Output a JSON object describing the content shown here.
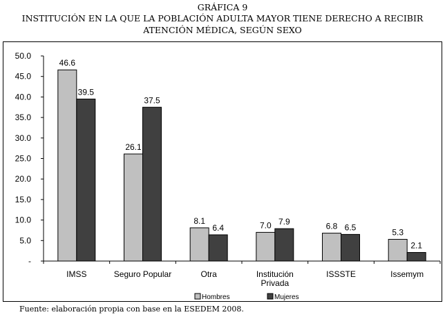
{
  "header": {
    "label": "GRÁFICA 9",
    "title_line1": "INSTITUCIÓN EN LA QUE LA POBLACIÓN ADULTA MAYOR TIENE DERECHO A RECIBIR",
    "title_line2": "ATENCIÓN MÉDICA, SEGÚN SEXO"
  },
  "footer": {
    "source": "Fuente: elaboración propia con base en la ESEDEM 2008."
  },
  "chart_data": {
    "type": "bar",
    "title": "INSTITUCIÓN EN LA QUE LA POBLACIÓN ADULTA MAYOR TIENE DERECHO A RECIBIR ATENCIÓN MÉDICA, SEGÚN SEXO",
    "categories": [
      [
        "IMSS"
      ],
      [
        "Seguro Popular"
      ],
      [
        "Otra"
      ],
      [
        "Institución",
        "Privada"
      ],
      [
        "ISSSTE"
      ],
      [
        "Issemym"
      ]
    ],
    "series": [
      {
        "name": "Hombres",
        "values": [
          46.6,
          26.1,
          8.1,
          7.0,
          6.8,
          5.3
        ],
        "color": "#c0c0c0"
      },
      {
        "name": "Mujeres",
        "values": [
          39.5,
          37.5,
          6.4,
          7.9,
          6.5,
          2.1
        ],
        "color": "#404040"
      }
    ],
    "value_labels": [
      [
        "46.6",
        "26.1",
        "8.1",
        "7.0",
        "6.8",
        "5.3"
      ],
      [
        "39.5",
        "37.5",
        "6.4",
        "7.9",
        "6.5",
        "2.1"
      ]
    ],
    "yticks": [
      0,
      5,
      10,
      15,
      20,
      25,
      30,
      35,
      40,
      45,
      50
    ],
    "ytick_labels": [
      "-",
      "5.0",
      "10.0",
      "15.0",
      "20.0",
      "25.0",
      "30.0",
      "35.0",
      "40.0",
      "45.0",
      "50.0"
    ],
    "ylim": [
      0,
      50
    ],
    "xlabel": "",
    "ylabel": "",
    "grid": false,
    "legend_position": "bottom-center"
  }
}
